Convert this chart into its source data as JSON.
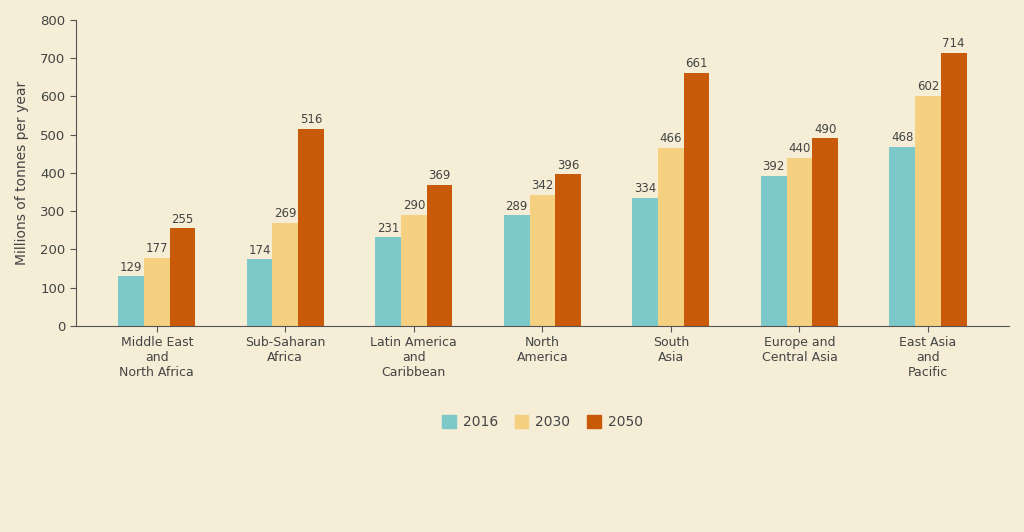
{
  "categories": [
    "Middle East\nand\nNorth Africa",
    "Sub-Saharan\nAfrica",
    "Latin America\nand\nCaribbean",
    "North\nAmerica",
    "South\nAsia",
    "Europe and\nCentral Asia",
    "East Asia\nand\nPacific"
  ],
  "series": {
    "2016": [
      129,
      174,
      231,
      289,
      334,
      392,
      468
    ],
    "2030": [
      177,
      269,
      290,
      342,
      466,
      440,
      602
    ],
    "2050": [
      255,
      516,
      369,
      396,
      661,
      490,
      714
    ]
  },
  "colors": {
    "2016": "#7DC8C8",
    "2030": "#F5D080",
    "2050": "#C95A0A"
  },
  "ylabel": "Millions of tonnes per year",
  "ylim": [
    0,
    800
  ],
  "yticks": [
    0,
    100,
    200,
    300,
    400,
    500,
    600,
    700,
    800
  ],
  "background_color": "#F5EDD6",
  "bar_edge_color": "none",
  "legend_labels": [
    "2016",
    "2030",
    "2050"
  ],
  "annotation_fontsize": 8.5,
  "ylabel_fontsize": 10,
  "xtick_fontsize": 9,
  "ytick_fontsize": 9.5,
  "legend_fontsize": 10,
  "bar_width": 0.2,
  "spine_color": "#555555",
  "tick_color": "#555555",
  "text_color": "#444444"
}
